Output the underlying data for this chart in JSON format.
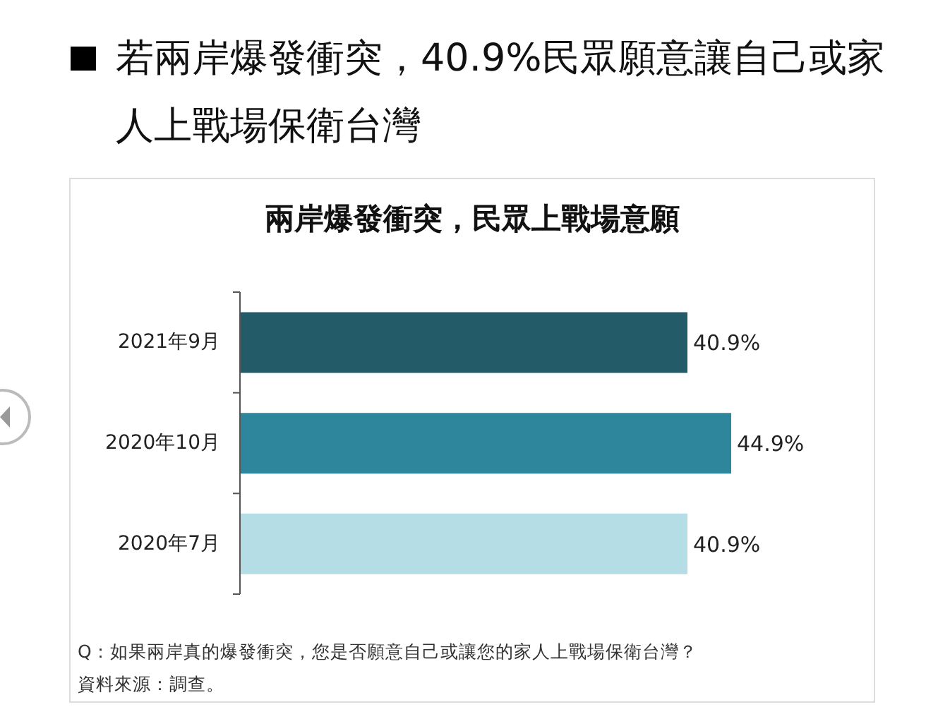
{
  "chart_data": {
    "type": "bar",
    "orientation": "horizontal",
    "title": "若兩岸爆發衝突，40.9%民眾願意讓自己或家人上戰場保衛台灣",
    "subtitle": "兩岸爆發衝突，民眾上戰場意願",
    "categories": [
      "2021年9月",
      "2020年10月",
      "2020年7月"
    ],
    "values": [
      40.9,
      44.9,
      40.9
    ],
    "colors": [
      "#235b69",
      "#2e869d",
      "#b4dde6"
    ],
    "value_labels": [
      "40.9%",
      "44.9%",
      "40.9%"
    ],
    "tick_labels": "y",
    "annotations": [
      "Q：如果兩岸真的爆發衝突，您是否願意自己或讓您的家人上戰場保衛台灣？",
      "資料來源：調查。"
    ]
  }
}
